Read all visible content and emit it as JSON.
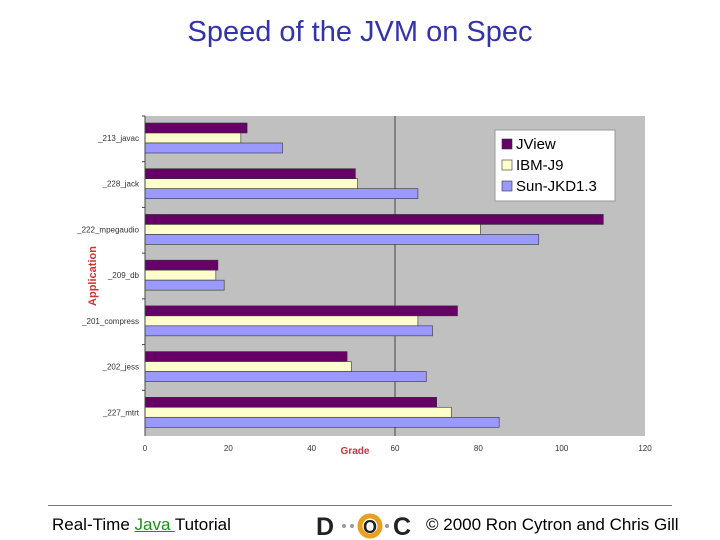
{
  "slide": {
    "title": "Speed of the JVM on Spec"
  },
  "chart_data": {
    "type": "bar",
    "orientation": "horizontal",
    "title": "",
    "xlabel": "Grade",
    "ylabel": "Application",
    "xlim": [
      0,
      120
    ],
    "xticks": [
      "0",
      "20",
      "40",
      "60",
      "80",
      "100",
      "120"
    ],
    "categories": [
      "_213_javac",
      "_228_jack",
      "_222_mpegaudio",
      "_209_db",
      "_201_compress",
      "_202_jess",
      "_227_mtrt"
    ],
    "series": [
      {
        "name": "JView",
        "color": "#660066",
        "values": [
          24.5,
          50.5,
          110,
          17.5,
          75,
          48.5,
          70
        ]
      },
      {
        "name": "IBM-J9",
        "color": "#ffffcc",
        "values": [
          23,
          51,
          80.5,
          17,
          65.5,
          49.5,
          73.5
        ]
      },
      {
        "name": "Sun-JKD1.3",
        "color": "#9999ff",
        "values": [
          33,
          65.5,
          94.5,
          19,
          69,
          67.5,
          85
        ]
      }
    ],
    "legend_position": "top-right",
    "gridlines": "vertical at 60",
    "plot_background": "#c0c0c0",
    "axis_label_color": "#cc3333"
  },
  "footer": {
    "course_prefix": "Real-Time ",
    "course_link": "Java ",
    "course_suffix": "Tutorial",
    "copyright": "© 2000 Ron Cytron and Chris Gill",
    "logo_letters": [
      "D",
      "O",
      "C"
    ]
  }
}
